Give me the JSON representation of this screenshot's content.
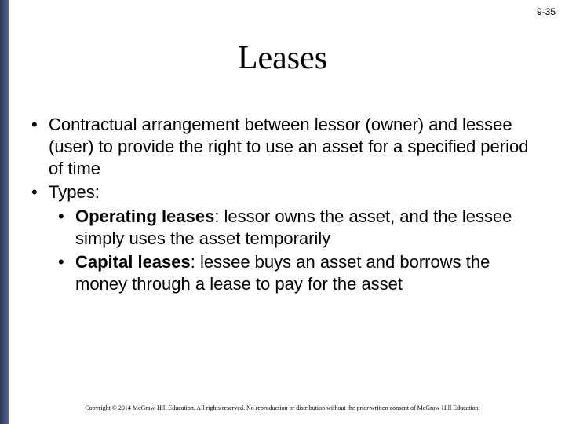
{
  "slide": {
    "number": "9-35",
    "title": "Leases",
    "bullets": [
      {
        "text": "Contractual arrangement between lessor (owner) and lessee (user) to provide the right to use an asset for a specified period of time"
      },
      {
        "text": "Types:",
        "children": [
          {
            "bold": "Operating leases",
            "rest": ": lessor owns the asset, and the lessee simply uses the asset temporarily"
          },
          {
            "bold": "Capital leases",
            "rest": ": lessee buys an asset and borrows the money through a lease to pay for the asset"
          }
        ]
      }
    ],
    "footer": "Copyright © 2014 McGraw-Hill Education. All rights reserved. No reproduction or distribution without the prior written consent of McGraw-Hill Education."
  },
  "style": {
    "bar_gradient_from": "#2a3a5a",
    "bar_gradient_to": "#5a6a8a",
    "title_fontsize": 42,
    "body_fontsize": 22,
    "footer_fontsize": 8,
    "background": "#ffffff",
    "text_color": "#000000"
  }
}
